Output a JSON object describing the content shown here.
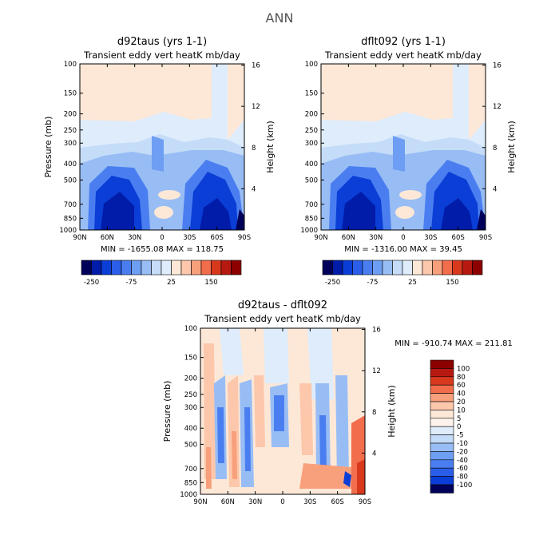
{
  "figure": {
    "title": "ANN"
  },
  "chart_data": [
    {
      "type": "heatmap",
      "id": "panel_a",
      "title": "d92taus (yrs 1-1)",
      "subtitle": "Transient eddy vert heatK mb/day",
      "xlabel": "",
      "ylabel": "Pressure (mb)",
      "ylabel_right": "Height (km)",
      "x_ticks": [
        "90N",
        "60N",
        "30N",
        "0",
        "30S",
        "60S",
        "90S"
      ],
      "y_ticks": [
        "100",
        "150",
        "200",
        "250",
        "300",
        "400",
        "500",
        "700",
        "850",
        "1000"
      ],
      "y2_ticks": [
        "16",
        "12",
        "8",
        "4"
      ],
      "xlim": [
        "90N",
        "90S"
      ],
      "ylim": [
        1000,
        100
      ],
      "y_scale": "log",
      "stats": "MIN = -1655.08   MAX = 118.75",
      "colorbar": {
        "tick_labels": [
          "-250",
          "-75",
          "25",
          "150"
        ],
        "colors": [
          "#00005a",
          "#001ca8",
          "#0a3ed6",
          "#2a5ee8",
          "#4a7ef0",
          "#6e9ef4",
          "#98bdf5",
          "#c4dcf8",
          "#deecfb",
          "#fde8d8",
          "#fcc7ab",
          "#f8a07b",
          "#f26d4c",
          "#d8391d",
          "#b71910",
          "#8c0000"
        ]
      }
    },
    {
      "type": "heatmap",
      "id": "panel_b",
      "title": "dflt092 (yrs 1-1)",
      "subtitle": "Transient eddy vert heatK mb/day",
      "xlabel": "",
      "ylabel": "",
      "ylabel_right": "Height (km)",
      "x_ticks": [
        "90N",
        "60N",
        "30N",
        "0",
        "30S",
        "60S",
        "90S"
      ],
      "y_ticks": [
        "100",
        "150",
        "200",
        "250",
        "300",
        "400",
        "500",
        "700",
        "850",
        "1000"
      ],
      "y2_ticks": [
        "16",
        "12",
        "8",
        "4"
      ],
      "xlim": [
        "90N",
        "90S"
      ],
      "ylim": [
        1000,
        100
      ],
      "y_scale": "log",
      "stats": "MIN = -1316.00   MAX =  39.45",
      "colorbar": {
        "tick_labels": [
          "-250",
          "-75",
          "25",
          "150"
        ],
        "colors": [
          "#00005a",
          "#001ca8",
          "#0a3ed6",
          "#2a5ee8",
          "#4a7ef0",
          "#6e9ef4",
          "#98bdf5",
          "#c4dcf8",
          "#deecfb",
          "#fde8d8",
          "#fcc7ab",
          "#f8a07b",
          "#f26d4c",
          "#d8391d",
          "#b71910",
          "#8c0000"
        ]
      }
    },
    {
      "type": "heatmap",
      "id": "panel_c",
      "title": "d92taus - dflt092",
      "subtitle": "Transient eddy vert heatK mb/day",
      "xlabel": "",
      "ylabel": "Pressure (mb)",
      "ylabel_right": "Height (km)",
      "x_ticks": [
        "90N",
        "60N",
        "30N",
        "0",
        "30S",
        "60S",
        "90S"
      ],
      "y_ticks": [
        "100",
        "150",
        "200",
        "250",
        "300",
        "400",
        "500",
        "700",
        "850",
        "1000"
      ],
      "y2_ticks": [
        "16",
        "12",
        "8",
        "4"
      ],
      "xlim": [
        "90N",
        "90S"
      ],
      "ylim": [
        1000,
        100
      ],
      "y_scale": "log",
      "stats": "MIN = -910.74   MAX = 211.81",
      "colorbar": {
        "tick_labels": [
          "100",
          "80",
          "60",
          "40",
          "20",
          "10",
          "5",
          "0",
          "-5",
          "-10",
          "-20",
          "-40",
          "-60",
          "-80",
          "-100"
        ],
        "colors": [
          "#8c0000",
          "#b71910",
          "#d8391d",
          "#f26d4c",
          "#f8a07b",
          "#fcc7ab",
          "#fde8d8",
          "#fdf3ec",
          "#deecfb",
          "#c4dcf8",
          "#98bdf5",
          "#6e9ef4",
          "#4a7ef0",
          "#2a5ee8",
          "#0a3ed6",
          "#00005a"
        ]
      }
    }
  ]
}
